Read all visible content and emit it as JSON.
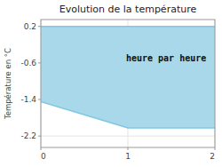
{
  "chart_data": {
    "type": "area",
    "title": "Evolution de la température",
    "ylabel": "Température en °C",
    "annotation": "heure par heure",
    "x": [
      0,
      1,
      2
    ],
    "series": [
      {
        "values": [
          -1.45,
          -2.02,
          -2.02
        ],
        "color": "#7ec8e3"
      },
      {
        "values": [
          0.2,
          0.2,
          0.2
        ],
        "color": "#7ec8e3"
      }
    ],
    "color": "#a8d8ea",
    "xlim": [
      0,
      2
    ],
    "xticks": [
      0,
      1,
      2
    ],
    "ylim": [
      -2.45,
      0.35
    ],
    "yticks": [
      0.2,
      -0.6,
      -1.4,
      -2.2
    ],
    "grid": true
  }
}
